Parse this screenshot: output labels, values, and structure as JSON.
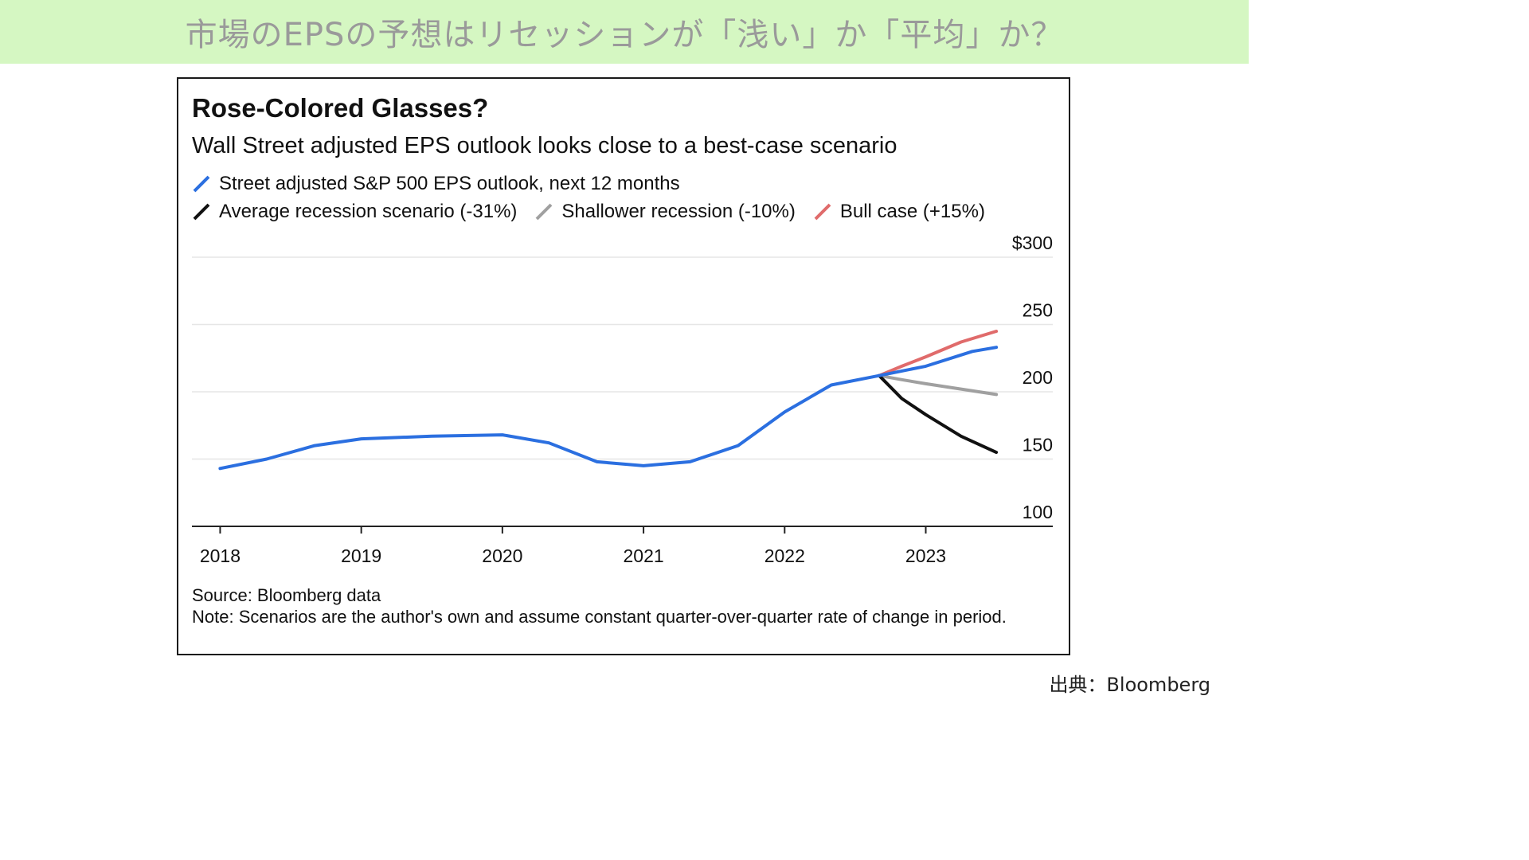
{
  "banner": {
    "title": "市場のEPSの予想はリセッションが「浅い」か「平均」か？"
  },
  "credit": "出典：Bloomberg",
  "chart_data": {
    "type": "line",
    "title": "Rose-Colored Glasses?",
    "subtitle": "Wall Street adjusted EPS outlook looks close to a best-case scenario",
    "y_unit_prefix": "$",
    "ylim": [
      100,
      300
    ],
    "yticks": [
      100,
      150,
      200,
      250,
      300
    ],
    "ytick_labels": [
      "100",
      "150",
      "200",
      "250",
      "$300"
    ],
    "xlim": [
      2017.8,
      2023.9
    ],
    "xticks": [
      2018,
      2019,
      2020,
      2021,
      2022,
      2023
    ],
    "xtick_labels": [
      "2018",
      "2019",
      "2020",
      "2021",
      "2022",
      "2023"
    ],
    "grid": true,
    "legend_placement": "top-left",
    "series": [
      {
        "name": "Street adjusted S&P 500 EPS outlook, next 12 months",
        "color": "#2b6fe0",
        "x": [
          2018.0,
          2018.33,
          2018.67,
          2019.0,
          2019.5,
          2020.0,
          2020.33,
          2020.67,
          2021.0,
          2021.33,
          2021.67,
          2022.0,
          2022.33,
          2022.67,
          2023.0,
          2023.33,
          2023.5
        ],
        "y": [
          143,
          150,
          160,
          165,
          167,
          168,
          162,
          148,
          145,
          148,
          160,
          185,
          205,
          212,
          219,
          230,
          233
        ]
      },
      {
        "name": "Average recession scenario (-31%)",
        "color": "#111111",
        "x": [
          2022.67,
          2022.83,
          2023.0,
          2023.25,
          2023.5
        ],
        "y": [
          212,
          195,
          183,
          167,
          155
        ]
      },
      {
        "name": "Shallower recession (-10%)",
        "color": "#a0a0a0",
        "x": [
          2022.67,
          2022.83,
          2023.0,
          2023.25,
          2023.5
        ],
        "y": [
          212,
          209,
          206,
          202,
          198
        ]
      },
      {
        "name": "Bull case (+15%)",
        "color": "#e06b6b",
        "x": [
          2022.67,
          2022.83,
          2023.0,
          2023.25,
          2023.5
        ],
        "y": [
          212,
          219,
          226,
          237,
          245
        ]
      }
    ],
    "source": "Source: Bloomberg data",
    "note": "Note: Scenarios are the author's own and assume constant quarter-over-quarter rate of change in period."
  }
}
